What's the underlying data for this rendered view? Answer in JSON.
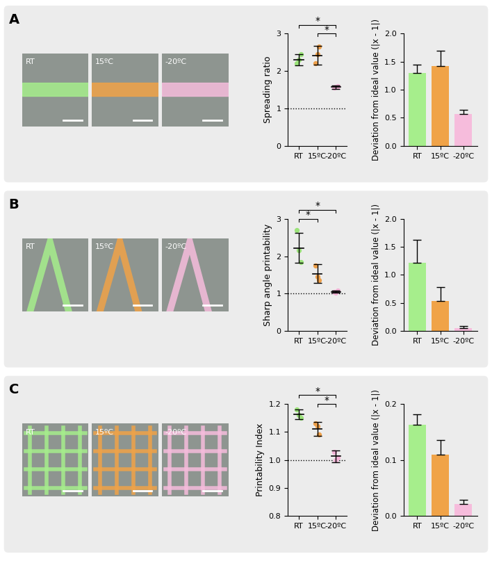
{
  "panels": [
    {
      "letter": "A",
      "photo_labels": [
        "RT",
        "15ºC",
        "-20ºC"
      ]
    },
    {
      "letter": "B",
      "photo_labels": [
        "RT",
        "15ºC",
        "-20ºC"
      ]
    },
    {
      "letter": "C",
      "photo_labels": [
        "RT",
        "15ºC",
        "-20ºC"
      ]
    }
  ],
  "chart_data": [
    {
      "type": "scatter",
      "y_label": "Spreading ratio",
      "categories": [
        "RT",
        "15ºC",
        "-20ºC"
      ],
      "colors": [
        "#9be37a",
        "#eea04a",
        "#f2b3d6"
      ],
      "points": [
        [
          2.2,
          2.3,
          2.45
        ],
        [
          2.2,
          2.45,
          2.65
        ],
        [
          1.55,
          1.58,
          1.6
        ]
      ],
      "means": [
        2.3,
        2.42,
        1.57
      ],
      "sd": [
        0.15,
        0.25,
        0.05
      ],
      "reference_line": 1,
      "significance": [
        {
          "between": [
            "RT",
            "-20ºC"
          ],
          "label": "*"
        },
        {
          "between": [
            "15ºC",
            "-20ºC"
          ],
          "label": "*"
        }
      ],
      "ylim": [
        0,
        3
      ],
      "yticks": [
        0,
        1,
        2,
        3
      ]
    },
    {
      "type": "bar",
      "y_label": "Deviation from ideal value (|x - 1|)",
      "categories": [
        "RT",
        "15ºC",
        "-20ºC"
      ],
      "colors": [
        "#a6ee8c",
        "#f0a348",
        "#f6bcdc"
      ],
      "values": [
        1.3,
        1.42,
        0.57
      ],
      "errors": [
        0.15,
        0.28,
        0.07
      ],
      "ylim": [
        0,
        2
      ],
      "yticks": [
        {
          "value": 0,
          "label": "0.0"
        },
        {
          "value": 0.5,
          "label": "0.5"
        },
        {
          "value": 1,
          "label": "1.0"
        },
        {
          "value": 1.5,
          "label": "1.5"
        },
        {
          "value": 2,
          "label": "2.0"
        }
      ]
    },
    {
      "type": "scatter",
      "y_label": "Sharp angle printability",
      "categories": [
        "RT",
        "15ºC",
        "-20ºC"
      ],
      "colors": [
        "#9be37a",
        "#eea04a",
        "#f2b3d6"
      ],
      "points": [
        [
          2.7,
          2.15,
          1.85
        ],
        [
          1.75,
          1.45,
          1.35
        ],
        [
          1.05,
          1.03,
          1.08
        ]
      ],
      "means": [
        2.22,
        1.53,
        1.05
      ],
      "sd": [
        0.4,
        0.25,
        0.03
      ],
      "reference_line": 1,
      "significance": [
        {
          "between": [
            "RT",
            "15ºC"
          ],
          "label": "*"
        },
        {
          "between": [
            "RT",
            "-20ºC"
          ],
          "label": "*"
        }
      ],
      "ylim": [
        0,
        3
      ],
      "yticks": [
        0,
        1,
        2,
        3
      ]
    },
    {
      "type": "bar",
      "y_label": "Deviation from ideal value (|x - 1|)",
      "categories": [
        "RT",
        "15ºC",
        "-20ºC"
      ],
      "colors": [
        "#a6ee8c",
        "#f0a348",
        "#f6bcdc"
      ],
      "values": [
        1.22,
        0.53,
        0.05
      ],
      "errors": [
        0.4,
        0.25,
        0.04
      ],
      "ylim": [
        0,
        2
      ],
      "yticks": [
        {
          "value": 0,
          "label": "0.0"
        },
        {
          "value": 0.5,
          "label": "0.5"
        },
        {
          "value": 1,
          "label": "1.0"
        },
        {
          "value": 1.5,
          "label": "1.5"
        },
        {
          "value": 2,
          "label": "2.0"
        }
      ]
    },
    {
      "type": "scatter",
      "y_label": "Printability Index",
      "categories": [
        "RT",
        "15ºC",
        "-20ºC"
      ],
      "colors": [
        "#9be37a",
        "#eea04a",
        "#f2b3d6"
      ],
      "points": [
        [
          1.18,
          1.16,
          1.15
        ],
        [
          1.13,
          1.12,
          1.09
        ],
        [
          1.03,
          1.0,
          1.01
        ]
      ],
      "means": [
        1.163,
        1.11,
        1.013
      ],
      "sd": [
        0.018,
        0.025,
        0.02
      ],
      "reference_line": 1,
      "significance": [
        {
          "between": [
            "RT",
            "-20ºC"
          ],
          "label": "*"
        },
        {
          "between": [
            "15ºC",
            "-20ºC"
          ],
          "label": "*"
        }
      ],
      "ylim": [
        0.8,
        1.2
      ],
      "yticks": [
        {
          "value": 0.8,
          "label": "0.8"
        },
        {
          "value": 0.9,
          "label": "0.9"
        },
        {
          "value": 1.0,
          "label": "1.0"
        },
        {
          "value": 1.1,
          "label": "1.1"
        },
        {
          "value": 1.2,
          "label": "1.2"
        }
      ]
    },
    {
      "type": "bar",
      "y_label": "Deviation from ideal value (|x - 1|)",
      "categories": [
        "RT",
        "15ºC",
        "-20ºC"
      ],
      "colors": [
        "#a6ee8c",
        "#f0a348",
        "#f6bcdc"
      ],
      "values": [
        0.163,
        0.11,
        0.022
      ],
      "errors": [
        0.018,
        0.025,
        0.007
      ],
      "ylim": [
        0,
        0.2
      ],
      "yticks": [
        {
          "value": 0,
          "label": "0.0"
        },
        {
          "value": 0.1,
          "label": "0.1"
        },
        {
          "value": 0.2,
          "label": "0.2"
        }
      ]
    }
  ]
}
